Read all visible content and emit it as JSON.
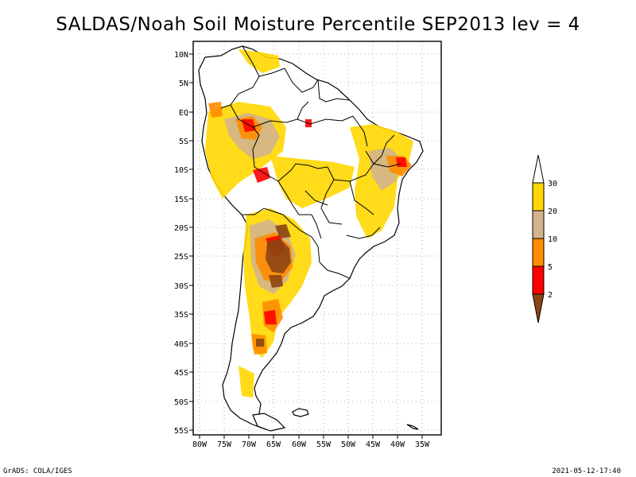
{
  "title": "SALDAS/Noah Soil Moisture Percentile SEP2013 lev = 4",
  "lat_labels": [
    "10N",
    "5N",
    "EQ",
    "5S",
    "10S",
    "15S",
    "20S",
    "25S",
    "30S",
    "35S",
    "40S",
    "45S",
    "50S",
    "55S"
  ],
  "lon_labels": [
    "80W",
    "75W",
    "70W",
    "65W",
    "60W",
    "55W",
    "50W",
    "45W",
    "40W",
    "35W"
  ],
  "colorbar": {
    "labels": [
      "30",
      "20",
      "10",
      "5",
      "2"
    ],
    "colors": {
      "above_30": "#ffffff",
      "20_30": "#ffd700",
      "10_20": "#d2b48c",
      "5_10": "#ff8c00",
      "2_5": "#ff0000",
      "below_2": "#8b4513"
    }
  },
  "footer": {
    "left": "GrADS: COLA/IGES",
    "right": "2021-05-12-17:40"
  }
}
